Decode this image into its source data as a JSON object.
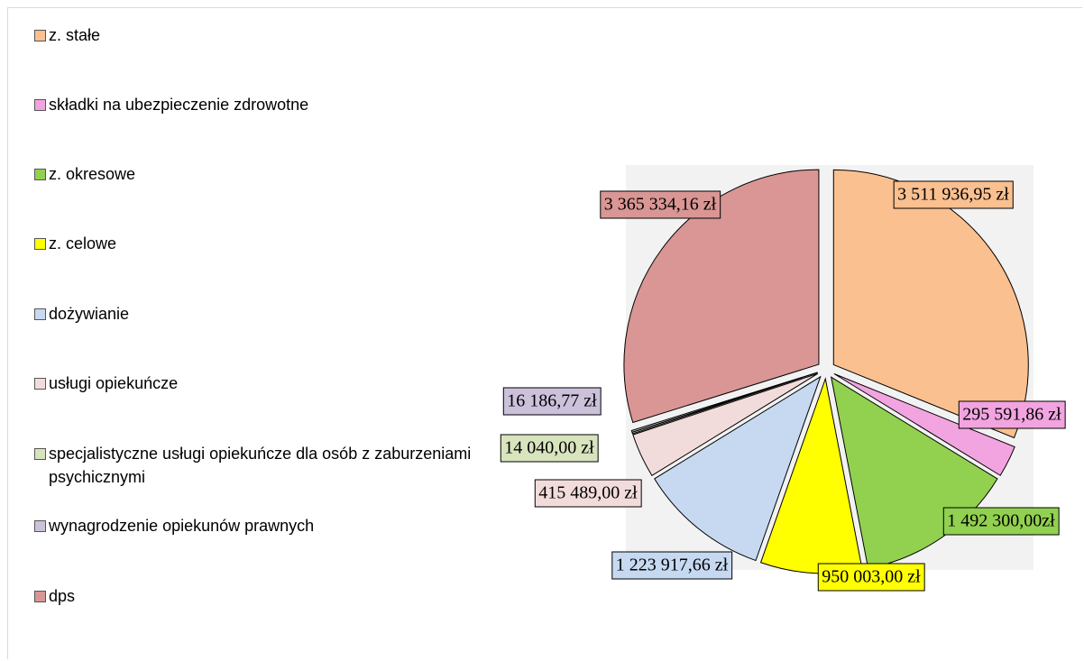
{
  "chart_data": {
    "type": "pie",
    "categories": [
      "z. stałe",
      "składki na ubezpieczenie zdrowotne",
      "z. okresowe",
      "z. celowe",
      "dożywianie",
      "usługi opiekuńcze",
      "specjalistyczne usługi opiekuńcze dla osób z zaburzeniami psychicznymi",
      "wynagrodzenie opiekunów prawnych",
      "dps"
    ],
    "values": [
      3511936.95,
      295591.86,
      1492300.0,
      950003.0,
      1223917.66,
      415489.0,
      14040.0,
      16186.77,
      3365334.16
    ],
    "value_labels": [
      "3 511 936,95 zł",
      "295 591,86 zł",
      "1 492 300,00zł",
      "950 003,00 zł",
      "1 223 917,66 zł",
      "415 489,00 zł",
      "14 040,00 zł",
      "16 186,77 zł",
      "3 365 334,16 zł"
    ],
    "colors": [
      "#FAC090",
      "#F2A4E0",
      "#92D050",
      "#FFFF00",
      "#C6D9F1",
      "#F2DCDB",
      "#D7E4BD",
      "#CCC1DA",
      "#D99694"
    ],
    "legend": "left"
  }
}
